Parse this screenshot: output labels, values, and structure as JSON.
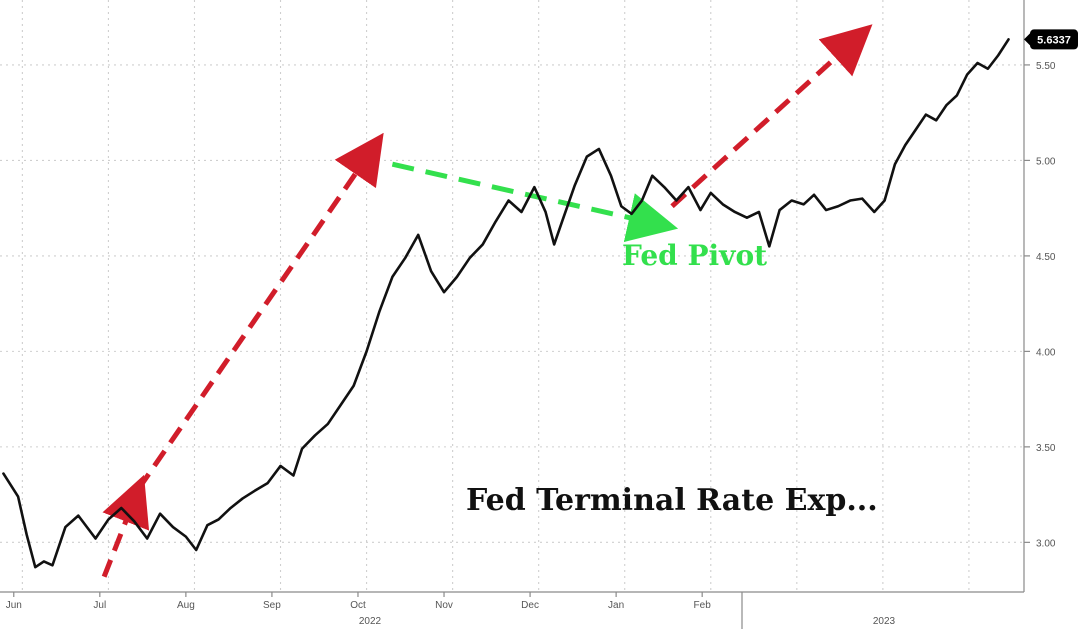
{
  "chart_data": {
    "type": "line",
    "title": "",
    "xlabel": "",
    "ylabel": "",
    "colors": {
      "line": "#111111",
      "arrow_red": "#d11d2a",
      "arrow_green": "#33e04d",
      "label_bg": "#000000",
      "label_text": "#ffffff",
      "grid": "#cfcfcf"
    },
    "ylim": [
      2.74,
      5.84
    ],
    "y_ticks": [
      3.0,
      3.5,
      4.0,
      4.5,
      5.0,
      5.5
    ],
    "y_tick_labels": [
      "3.00",
      "3.50",
      "4.00",
      "4.50",
      "5.00",
      "5.50"
    ],
    "month_labels": [
      "Jun",
      "Jul",
      "Aug",
      "Sep",
      "Oct",
      "Nov",
      "Dec",
      "Jan",
      "Feb"
    ],
    "year_labels": [
      "2022",
      "2023"
    ],
    "last_value_label": "5.6337",
    "annotations": {
      "main_text": "Fed Terminal Rate Exp...",
      "pivot_text": "Fed Pivot"
    },
    "arrows": [
      {
        "name": "red-arrow-1",
        "from": [
          7.05,
          2.82
        ],
        "to": [
          7.45,
          3.28
        ],
        "color": "arrow_red"
      },
      {
        "name": "red-arrow-2",
        "from": [
          7.45,
          3.28
        ],
        "to": [
          10.2,
          5.08
        ],
        "color": "arrow_red"
      },
      {
        "name": "green-arrow",
        "from": [
          10.4,
          4.98
        ],
        "to": [
          13.55,
          4.66
        ],
        "color": "arrow_green"
      },
      {
        "name": "red-arrow-3",
        "from": [
          13.65,
          4.76
        ],
        "to": [
          15.85,
          5.66
        ],
        "color": "arrow_red"
      }
    ],
    "series": [
      {
        "values": [
          [
            5.88,
            3.36
          ],
          [
            6.05,
            3.24
          ],
          [
            6.15,
            3.04
          ],
          [
            6.25,
            2.87
          ],
          [
            6.35,
            2.9
          ],
          [
            6.45,
            2.88
          ],
          [
            6.6,
            3.08
          ],
          [
            6.75,
            3.14
          ],
          [
            6.95,
            3.02
          ],
          [
            7.1,
            3.12
          ],
          [
            7.25,
            3.18
          ],
          [
            7.4,
            3.11
          ],
          [
            7.55,
            3.02
          ],
          [
            7.7,
            3.15
          ],
          [
            7.85,
            3.08
          ],
          [
            8.0,
            3.03
          ],
          [
            8.12,
            2.96
          ],
          [
            8.25,
            3.09
          ],
          [
            8.38,
            3.12
          ],
          [
            8.52,
            3.18
          ],
          [
            8.66,
            3.23
          ],
          [
            8.8,
            3.27
          ],
          [
            8.95,
            3.31
          ],
          [
            9.1,
            3.4
          ],
          [
            9.25,
            3.35
          ],
          [
            9.35,
            3.49
          ],
          [
            9.5,
            3.56
          ],
          [
            9.65,
            3.62
          ],
          [
            9.8,
            3.72
          ],
          [
            9.95,
            3.82
          ],
          [
            10.1,
            4.0
          ],
          [
            10.25,
            4.21
          ],
          [
            10.4,
            4.39
          ],
          [
            10.55,
            4.49
          ],
          [
            10.7,
            4.61
          ],
          [
            10.85,
            4.42
          ],
          [
            11.0,
            4.31
          ],
          [
            11.15,
            4.39
          ],
          [
            11.3,
            4.49
          ],
          [
            11.45,
            4.56
          ],
          [
            11.6,
            4.68
          ],
          [
            11.75,
            4.79
          ],
          [
            11.9,
            4.73
          ],
          [
            12.05,
            4.86
          ],
          [
            12.18,
            4.73
          ],
          [
            12.28,
            4.56
          ],
          [
            12.38,
            4.69
          ],
          [
            12.52,
            4.87
          ],
          [
            12.66,
            5.02
          ],
          [
            12.8,
            5.06
          ],
          [
            12.94,
            4.92
          ],
          [
            13.06,
            4.76
          ],
          [
            13.18,
            4.72
          ],
          [
            13.3,
            4.79
          ],
          [
            13.42,
            4.92
          ],
          [
            13.56,
            4.86
          ],
          [
            13.7,
            4.79
          ],
          [
            13.84,
            4.86
          ],
          [
            13.98,
            4.74
          ],
          [
            14.1,
            4.83
          ],
          [
            14.24,
            4.77
          ],
          [
            14.38,
            4.73
          ],
          [
            14.52,
            4.7
          ],
          [
            14.66,
            4.73
          ],
          [
            14.78,
            4.55
          ],
          [
            14.9,
            4.74
          ],
          [
            15.04,
            4.79
          ],
          [
            15.18,
            4.77
          ],
          [
            15.3,
            4.82
          ],
          [
            15.44,
            4.74
          ],
          [
            15.58,
            4.76
          ],
          [
            15.72,
            4.79
          ],
          [
            15.86,
            4.8
          ],
          [
            16.0,
            4.73
          ],
          [
            16.12,
            4.79
          ],
          [
            16.24,
            4.98
          ],
          [
            16.36,
            5.08
          ],
          [
            16.48,
            5.16
          ],
          [
            16.6,
            5.24
          ],
          [
            16.72,
            5.21
          ],
          [
            16.84,
            5.29
          ],
          [
            16.96,
            5.34
          ],
          [
            17.08,
            5.45
          ],
          [
            17.2,
            5.51
          ],
          [
            17.32,
            5.48
          ],
          [
            17.44,
            5.55
          ],
          [
            17.56,
            5.6337
          ]
        ]
      }
    ]
  }
}
